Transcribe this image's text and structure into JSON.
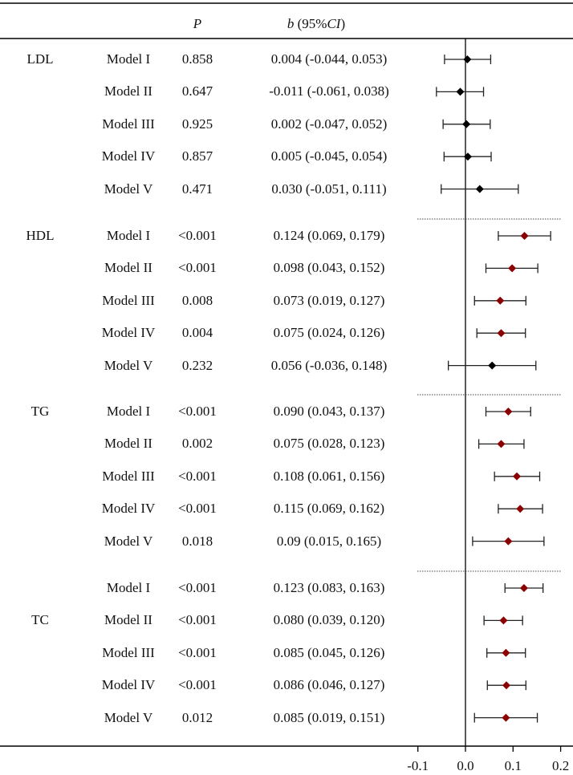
{
  "chart_data": {
    "type": "forest",
    "headers": {
      "p": "P",
      "b_italic": "b",
      "b_mid": " (95%",
      "b_ci": "CI",
      "b_end": ")"
    },
    "xlim": [
      -0.1,
      0.2
    ],
    "xticks": [
      "-0.1",
      "0.0",
      "0.1",
      "0.2"
    ],
    "xtick_values": [
      -0.1,
      0.0,
      0.1,
      0.2
    ],
    "colors": {
      "significant": "#8b0000",
      "nonsignificant": "#000000"
    },
    "groups": [
      {
        "name": "LDL",
        "label_row": 0,
        "rows": [
          {
            "model": "Model I",
            "p": "0.858",
            "text": "0.004 (-0.044, 0.053)",
            "b": 0.004,
            "lo": -0.044,
            "hi": 0.053,
            "sig": false
          },
          {
            "model": "Model II",
            "p": "0.647",
            "text": "-0.011 (-0.061, 0.038)",
            "b": -0.011,
            "lo": -0.061,
            "hi": 0.038,
            "sig": false
          },
          {
            "model": "Model III",
            "p": "0.925",
            "text": "0.002 (-0.047, 0.052)",
            "b": 0.002,
            "lo": -0.047,
            "hi": 0.052,
            "sig": false
          },
          {
            "model": "Model IV",
            "p": "0.857",
            "text": "0.005 (-0.045, 0.054)",
            "b": 0.005,
            "lo": -0.045,
            "hi": 0.054,
            "sig": false
          },
          {
            "model": "Model V",
            "p": "0.471",
            "text": "0.030 (-0.051, 0.111)",
            "b": 0.03,
            "lo": -0.051,
            "hi": 0.111,
            "sig": false
          }
        ]
      },
      {
        "name": "HDL",
        "label_row": 0,
        "rows": [
          {
            "model": "Model I",
            "p": "<0.001",
            "text": "0.124 (0.069, 0.179)",
            "b": 0.124,
            "lo": 0.069,
            "hi": 0.179,
            "sig": true
          },
          {
            "model": "Model II",
            "p": "<0.001",
            "text": "0.098 (0.043, 0.152)",
            "b": 0.098,
            "lo": 0.043,
            "hi": 0.152,
            "sig": true
          },
          {
            "model": "Model III",
            "p": "0.008",
            "text": "0.073 (0.019, 0.127)",
            "b": 0.073,
            "lo": 0.019,
            "hi": 0.127,
            "sig": true
          },
          {
            "model": "Model IV",
            "p": "0.004",
            "text": "0.075 (0.024, 0.126)",
            "b": 0.075,
            "lo": 0.024,
            "hi": 0.126,
            "sig": true
          },
          {
            "model": "Model V",
            "p": "0.232",
            "text": "0.056 (-0.036, 0.148)",
            "b": 0.056,
            "lo": -0.036,
            "hi": 0.148,
            "sig": false
          }
        ]
      },
      {
        "name": "TG",
        "label_row": 0,
        "rows": [
          {
            "model": "Model I",
            "p": "<0.001",
            "text": "0.090 (0.043, 0.137)",
            "b": 0.09,
            "lo": 0.043,
            "hi": 0.137,
            "sig": true
          },
          {
            "model": "Model II",
            "p": "0.002",
            "text": "0.075 (0.028, 0.123)",
            "b": 0.075,
            "lo": 0.028,
            "hi": 0.123,
            "sig": true
          },
          {
            "model": "Model III",
            "p": "<0.001",
            "text": "0.108 (0.061, 0.156)",
            "b": 0.108,
            "lo": 0.061,
            "hi": 0.156,
            "sig": true
          },
          {
            "model": "Model IV",
            "p": "<0.001",
            "text": "0.115 (0.069, 0.162)",
            "b": 0.115,
            "lo": 0.069,
            "hi": 0.162,
            "sig": true
          },
          {
            "model": "Model V",
            "p": "0.018",
            "text": "0.09 (0.015, 0.165)",
            "b": 0.09,
            "lo": 0.015,
            "hi": 0.165,
            "sig": true
          }
        ]
      },
      {
        "name": "TC",
        "label_row": 1,
        "rows": [
          {
            "model": "Model I",
            "p": "<0.001",
            "text": "0.123 (0.083, 0.163)",
            "b": 0.123,
            "lo": 0.083,
            "hi": 0.163,
            "sig": true
          },
          {
            "model": "Model II",
            "p": "<0.001",
            "text": "0.080 (0.039, 0.120)",
            "b": 0.08,
            "lo": 0.039,
            "hi": 0.12,
            "sig": true
          },
          {
            "model": "Model III",
            "p": "<0.001",
            "text": "0.085 (0.045, 0.126)",
            "b": 0.085,
            "lo": 0.045,
            "hi": 0.126,
            "sig": true
          },
          {
            "model": "Model IV",
            "p": "<0.001",
            "text": "0.086 (0.046, 0.127)",
            "b": 0.086,
            "lo": 0.046,
            "hi": 0.127,
            "sig": true
          },
          {
            "model": "Model V",
            "p": "0.012",
            "text": "0.085 (0.019, 0.151)",
            "b": 0.085,
            "lo": 0.019,
            "hi": 0.151,
            "sig": true
          }
        ]
      }
    ]
  }
}
